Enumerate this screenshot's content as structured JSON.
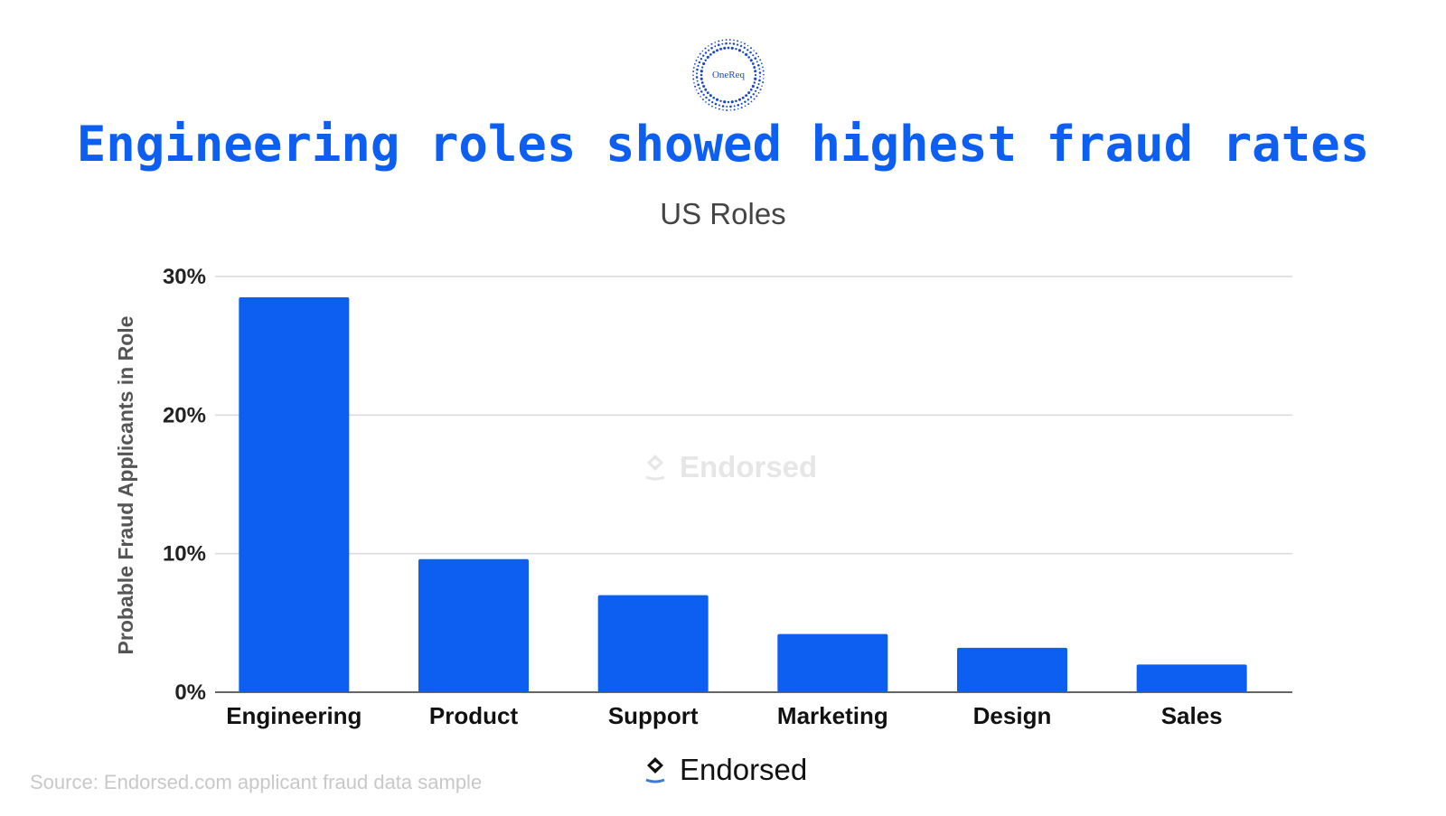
{
  "logo": {
    "text": "OneReq"
  },
  "header": {
    "title": "Engineering roles showed highest fraud rates",
    "subtitle": "US Roles"
  },
  "watermark": {
    "text": "Endorsed"
  },
  "footer": {
    "source": "Source: Endorsed.com applicant fraud data sample",
    "brand": "Endorsed"
  },
  "colors": {
    "bar": "#0d5ff2",
    "title": "#0d5ff2",
    "logo": "#1a47c9"
  },
  "chart_data": {
    "type": "bar",
    "title": "Engineering roles showed highest fraud rates",
    "subtitle": "US Roles",
    "xlabel": "",
    "ylabel": "Probable Fraud Applicants in Role",
    "categories": [
      "Engineering",
      "Product",
      "Support",
      "Marketing",
      "Design",
      "Sales"
    ],
    "values": [
      28.5,
      9.6,
      7.0,
      4.2,
      3.2,
      2.0
    ],
    "ylim": [
      0,
      30
    ],
    "yticks": [
      0,
      10,
      20,
      30
    ],
    "ytick_labels": [
      "0%",
      "10%",
      "20%",
      "30%"
    ],
    "grid": true,
    "legend": "none"
  }
}
